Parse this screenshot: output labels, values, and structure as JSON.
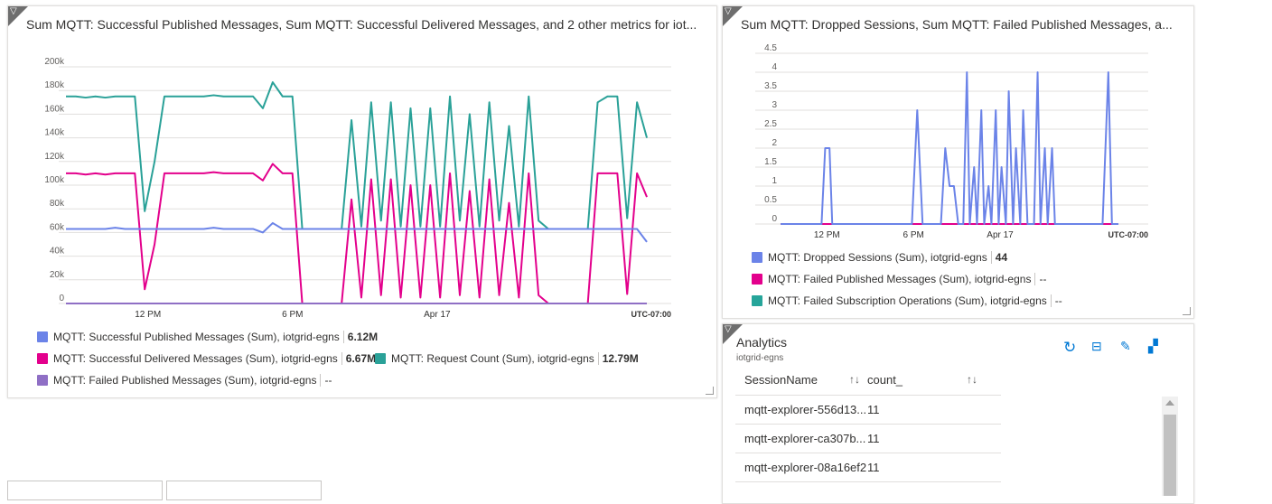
{
  "colors": {
    "published": "#6b83e8",
    "delivered": "#e3008c",
    "request": "#2aa198",
    "failed_pub": "#8f6fc5",
    "failed_sub": "#26a59a"
  },
  "left_panel": {
    "title": "Sum MQTT: Successful Published Messages, Sum MQTT: Successful Delivered Messages, and 2 other metrics for iot...",
    "legend": [
      {
        "label": "MQTT: Successful Published Messages (Sum), iotgrid-egns",
        "value": "6.12M"
      },
      {
        "label": "MQTT: Successful Delivered Messages (Sum), iotgrid-egns",
        "value": "6.67M"
      },
      {
        "label": "MQTT: Request Count (Sum), iotgrid-egns",
        "value": "12.79M"
      },
      {
        "label": "MQTT: Failed Published Messages (Sum), iotgrid-egns",
        "value": "--"
      }
    ]
  },
  "right_panel": {
    "title": "Sum MQTT: Dropped Sessions, Sum MQTT: Failed Published Messages, a...",
    "legend": [
      {
        "label": "MQTT: Dropped Sessions (Sum), iotgrid-egns",
        "value": "44"
      },
      {
        "label": "MQTT: Failed Published Messages (Sum), iotgrid-egns",
        "value": "--"
      },
      {
        "label": "MQTT: Failed Subscription Operations (Sum), iotgrid-egns",
        "value": "--"
      }
    ]
  },
  "analytics": {
    "title": "Analytics",
    "subtitle": "iotgrid-egns",
    "columns": [
      "SessionName",
      "count_"
    ],
    "sort_icon": "↑↓",
    "rows": [
      [
        "mqtt-explorer-556d13...",
        "11"
      ],
      [
        "mqtt-explorer-ca307b...",
        "11"
      ],
      [
        "mqtt-explorer-08a16ef2",
        "11"
      ]
    ],
    "toolbar": [
      "refresh-icon",
      "query-icon",
      "edit-icon",
      "insights-icon"
    ]
  },
  "chart_data": [
    {
      "type": "line",
      "x_unit": "hours since Apr 16 00:00",
      "x_start": 8.6,
      "x_step": 0.4085,
      "xlim": [
        8.6,
        32.7
      ],
      "ylim": [
        0,
        200000
      ],
      "yticks": [
        "0",
        "20k",
        "40k",
        "60k",
        "80k",
        "100k",
        "120k",
        "140k",
        "160k",
        "180k",
        "200k"
      ],
      "xticks": [
        {
          "t": 12,
          "label": "12 PM"
        },
        {
          "t": 18,
          "label": "6 PM"
        },
        {
          "t": 24,
          "label": "Apr 17"
        }
      ],
      "timezone": "UTC-07:00",
      "series": [
        {
          "name": "MQTT: Request Count (Sum)",
          "color_key": "request",
          "values": [
            175,
            175,
            174,
            175,
            174,
            175,
            175,
            175,
            78,
            120,
            175,
            175,
            175,
            175,
            175,
            176,
            175,
            175,
            175,
            175,
            165,
            187,
            175,
            175,
            63,
            63,
            63,
            63,
            63,
            155,
            65,
            170,
            70,
            170,
            65,
            165,
            65,
            165,
            65,
            175,
            70,
            160,
            65,
            170,
            70,
            150,
            65,
            175,
            70,
            63,
            63,
            63,
            63,
            63,
            170,
            175,
            175,
            72,
            170,
            140
          ]
        },
        {
          "name": "MQTT: Successful Delivered Messages (Sum)",
          "color_key": "delivered",
          "values": [
            110,
            110,
            109,
            110,
            109,
            110,
            110,
            110,
            12,
            50,
            110,
            110,
            110,
            110,
            110,
            111,
            110,
            110,
            110,
            110,
            104,
            118,
            110,
            110,
            0,
            0,
            0,
            0,
            0,
            88,
            5,
            105,
            7,
            105,
            5,
            100,
            5,
            100,
            5,
            110,
            7,
            95,
            5,
            105,
            7,
            85,
            5,
            110,
            7,
            0,
            0,
            0,
            0,
            0,
            110,
            110,
            110,
            8,
            110,
            90
          ]
        },
        {
          "name": "MQTT: Successful Published Messages (Sum)",
          "color_key": "published",
          "values": [
            63,
            63,
            63,
            63,
            63,
            64,
            63,
            63,
            63,
            63,
            63,
            63,
            63,
            63,
            63,
            64,
            63,
            63,
            63,
            63,
            60,
            68,
            63,
            63,
            63,
            63,
            63,
            63,
            63,
            63,
            63,
            63,
            63,
            63,
            63,
            63,
            63,
            63,
            63,
            63,
            63,
            63,
            63,
            63,
            63,
            63,
            63,
            63,
            63,
            63,
            63,
            63,
            63,
            63,
            63,
            63,
            63,
            63,
            63,
            52
          ]
        },
        {
          "name": "MQTT: Failed Published Messages (Sum)",
          "color_key": "failed_pub",
          "values": [
            0,
            0
          ]
        }
      ],
      "value_scale": 1000
    },
    {
      "type": "line",
      "x_unit": "hours since Apr 16 00:00",
      "xlim": [
        8.6,
        32.7
      ],
      "ylim": [
        0,
        4.5
      ],
      "yticks": [
        "0",
        "0.5",
        "1",
        "1.5",
        "2",
        "2.5",
        "3",
        "3.5",
        "4",
        "4.5"
      ],
      "xticks": [
        {
          "t": 12,
          "label": "12 PM"
        },
        {
          "t": 18,
          "label": "6 PM"
        },
        {
          "t": 24,
          "label": "Apr 17"
        }
      ],
      "timezone": "UTC-07:00",
      "series": [
        {
          "name": "MQTT: Failed Subscription Operations (Sum)",
          "color_key": "failed_sub",
          "points": [
            [
              8.8,
              0
            ],
            [
              32.2,
              0
            ]
          ]
        },
        {
          "name": "MQTT: Failed Published Messages (Sum)",
          "color_key": "delivered",
          "points": [
            [
              8.8,
              0
            ],
            [
              32.2,
              0
            ]
          ]
        },
        {
          "name": "MQTT: Dropped Sessions (Sum)",
          "color_key": "published",
          "points": [
            [
              8.8,
              0
            ],
            [
              11.63,
              0
            ],
            [
              11.88,
              2
            ],
            [
              12.18,
              2
            ],
            [
              12.37,
              0
            ],
            [
              17.89,
              0
            ],
            [
              18.26,
              3
            ],
            [
              18.63,
              0
            ],
            [
              19.9,
              0
            ],
            [
              20.2,
              2
            ],
            [
              20.5,
              1
            ],
            [
              20.8,
              1
            ],
            [
              21.1,
              0
            ],
            [
              21.45,
              0
            ],
            [
              21.7,
              4
            ],
            [
              21.9,
              0
            ],
            [
              22.2,
              1.5
            ],
            [
              22.4,
              0
            ],
            [
              22.7,
              3
            ],
            [
              22.9,
              0
            ],
            [
              23.2,
              1
            ],
            [
              23.4,
              0
            ],
            [
              23.7,
              3
            ],
            [
              23.9,
              0
            ],
            [
              24.1,
              1.5
            ],
            [
              24.4,
              0
            ],
            [
              24.6,
              3.5
            ],
            [
              24.9,
              0
            ],
            [
              25.1,
              2
            ],
            [
              25.4,
              0
            ],
            [
              25.6,
              3
            ],
            [
              25.9,
              0
            ],
            [
              26.35,
              0
            ],
            [
              26.6,
              4
            ],
            [
              26.8,
              0
            ],
            [
              27.1,
              2
            ],
            [
              27.3,
              0
            ],
            [
              27.6,
              2
            ],
            [
              27.8,
              0
            ],
            [
              31.1,
              0
            ],
            [
              31.5,
              4
            ],
            [
              31.75,
              0
            ],
            [
              32.2,
              0
            ]
          ]
        }
      ]
    }
  ]
}
